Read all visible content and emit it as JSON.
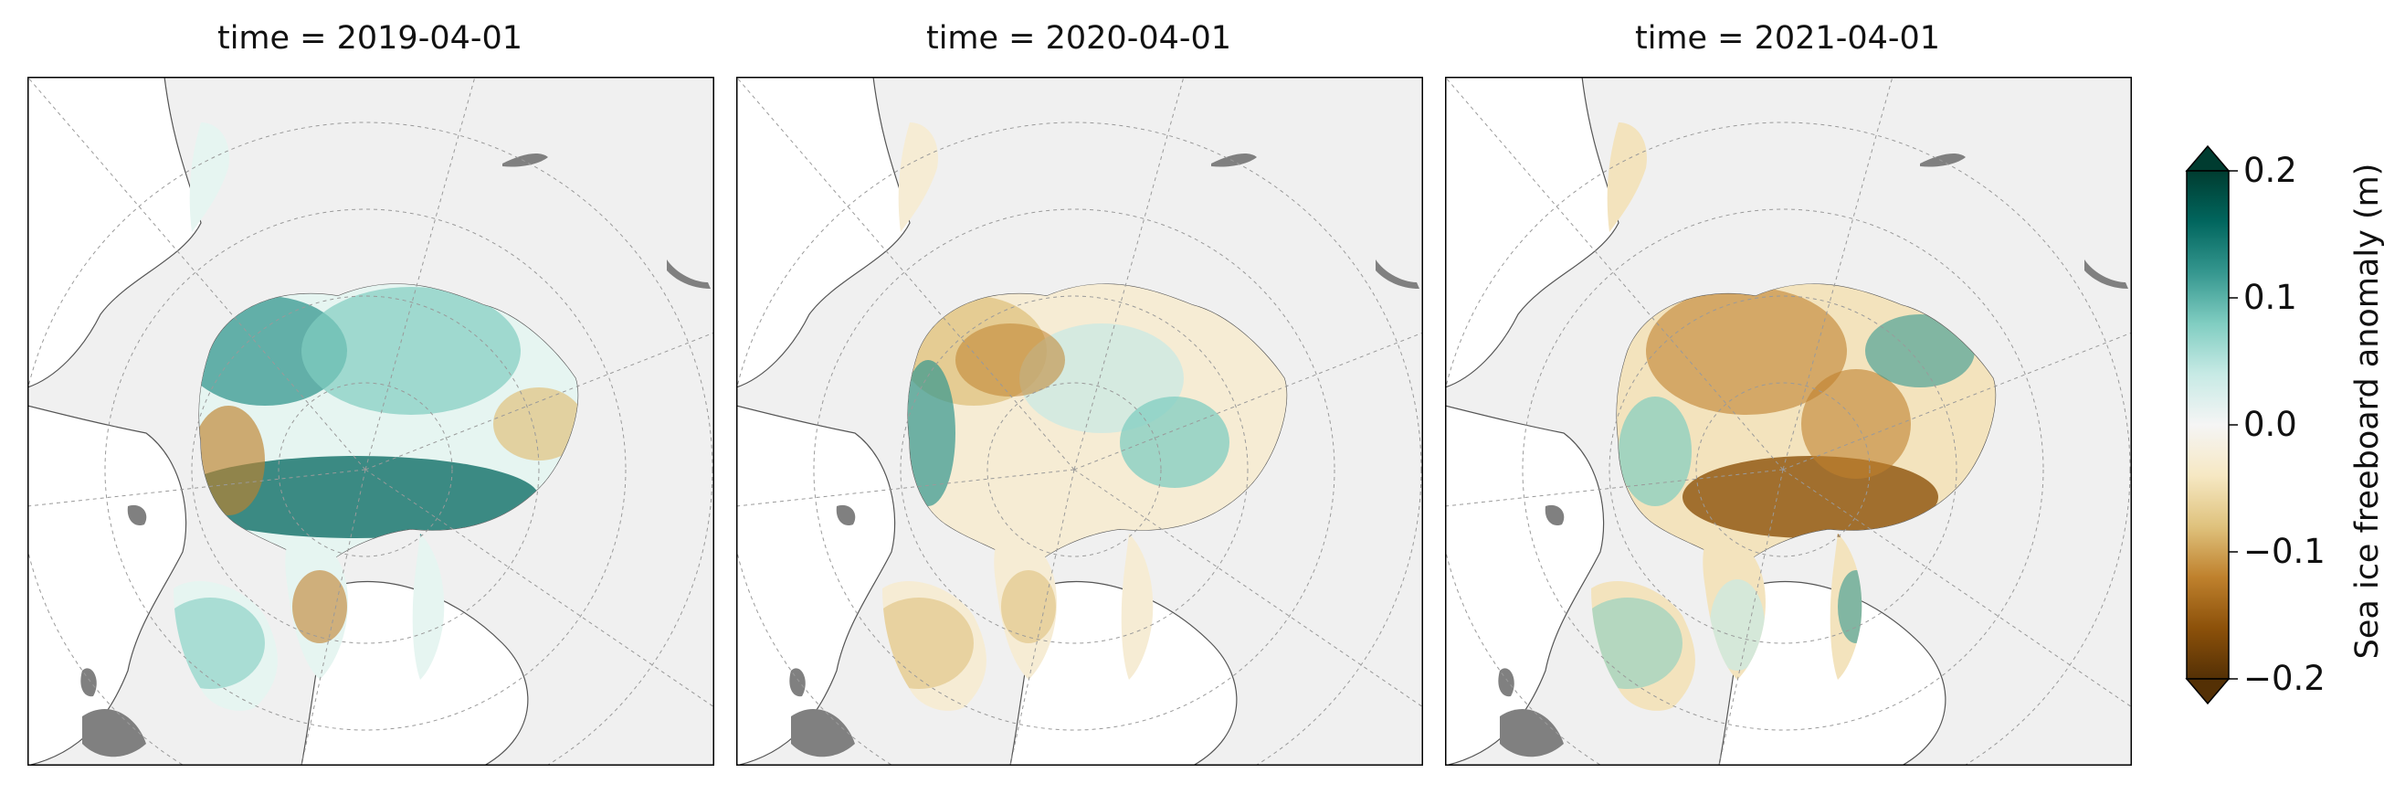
{
  "panels": [
    {
      "title": "time = 2019-04-01"
    },
    {
      "title": "time = 2020-04-01"
    },
    {
      "title": "time = 2021-04-01"
    }
  ],
  "colorbar": {
    "label": "Sea ice freeboard anomaly (m)",
    "ticks": [
      "0.2",
      "0.1",
      "0.0",
      "−0.1",
      "−0.2"
    ],
    "tick_values": [
      0.2,
      0.1,
      0.0,
      -0.1,
      -0.2
    ],
    "range": [
      -0.2,
      0.2
    ],
    "extend": "both",
    "colormap": "BrBG",
    "colors": [
      "#543005",
      "#8c510a",
      "#bf812d",
      "#dfc27d",
      "#f6e8c3",
      "#f5f5f5",
      "#c7eae5",
      "#80cdc1",
      "#35978f",
      "#01665e",
      "#003c30"
    ]
  },
  "map": {
    "projection": "north-polar-stereographic",
    "land_color": "#f0f0f0",
    "lake_color": "#808080",
    "ocean_color": "#ffffff",
    "coastline_color": "#555555",
    "gridlines": true
  },
  "anomaly_patterns": [
    {
      "year": "2019",
      "arctic_basin": "mostly positive (teal)",
      "barents_kara": "mixed"
    },
    {
      "year": "2020",
      "arctic_basin": "mostly negative (tan)",
      "barents_kara": "mixed"
    },
    {
      "year": "2021",
      "arctic_basin": "strongly negative near Canadian Archipelago, positive near Siberia",
      "barents_kara": "mixed"
    }
  ]
}
